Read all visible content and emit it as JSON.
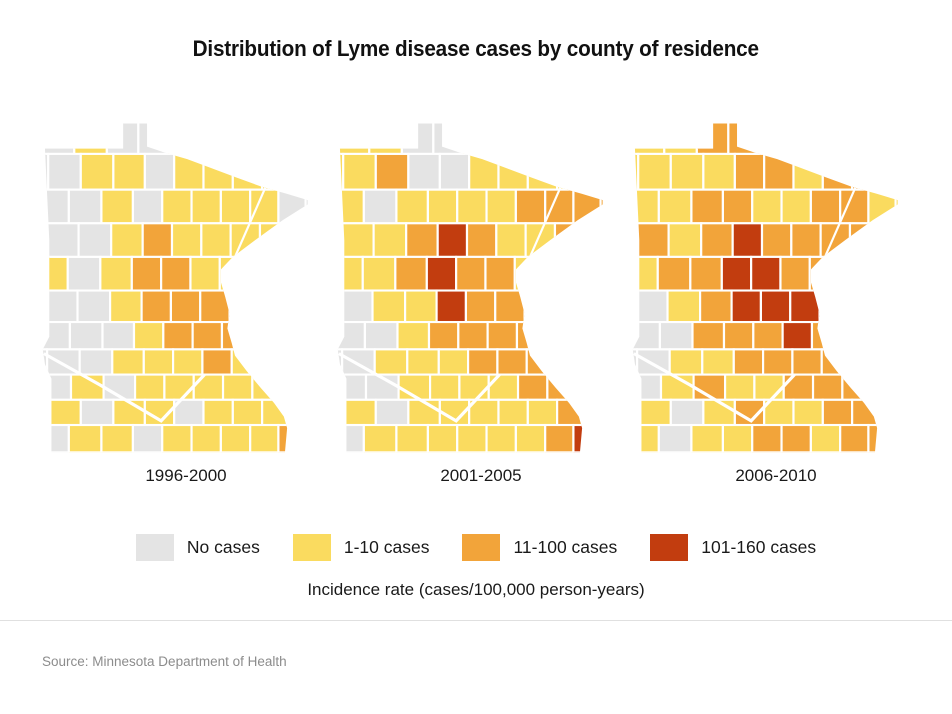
{
  "chart_data": {
    "type": "choropleth",
    "title": "Distribution of Lyme disease cases by county of residence",
    "region": "Minnesota, by county",
    "unit_caption": "Incidence rate (cases/100,000 person-years)",
    "source": "Source: Minnesota Department of Health",
    "legend_position": "bottom",
    "categories": [
      {
        "key": "N",
        "label": "No cases",
        "color": "#e4e4e4"
      },
      {
        "key": "L",
        "label": "1-10 cases",
        "color": "#fadb5f"
      },
      {
        "key": "M",
        "label": "11-100 cases",
        "color": "#f2a43a"
      },
      {
        "key": "H",
        "label": "101-160 cases",
        "color": "#c23d0f"
      }
    ],
    "periods": [
      {
        "label": "1996-2000",
        "grid": [
          "NLNNLLLLL",
          "NLLNLLLLL",
          "NNLNLLLLN",
          "NNLMLLLLL",
          "LNLMMLLLL",
          "NNLMMMLLL",
          "NNNLMMMLL",
          "NNLLLMLLL",
          "NLNLLLLLL",
          "LNLLNLLLL",
          "NLLNLLLLM"
        ]
      },
      {
        "label": "2001-2005",
        "grid": [
          "LLNNLLLLL",
          "LMNNLLLLL",
          "LNLLLLMMM",
          "LLMHMLLMM",
          "LLMHMMLLL",
          "NLLHMMMLL",
          "NNLMMMMLL",
          "NLLLMMMLL",
          "NNLLLLMML",
          "LNLLLLLMM",
          "NLLLLLLMH"
        ]
      },
      {
        "label": "2006-2010",
        "grid": [
          "LLMMMMMML",
          "LLLMMLMMM",
          "LLMMLLMML",
          "MLMHMMMML",
          "LMMHHMMML",
          "NLMHHHMLL",
          "NNMMMHMLL",
          "NLLMMMMML",
          "NLMLLMMML",
          "LNLMLLMMM",
          "LNLLMMLMM"
        ]
      }
    ]
  }
}
